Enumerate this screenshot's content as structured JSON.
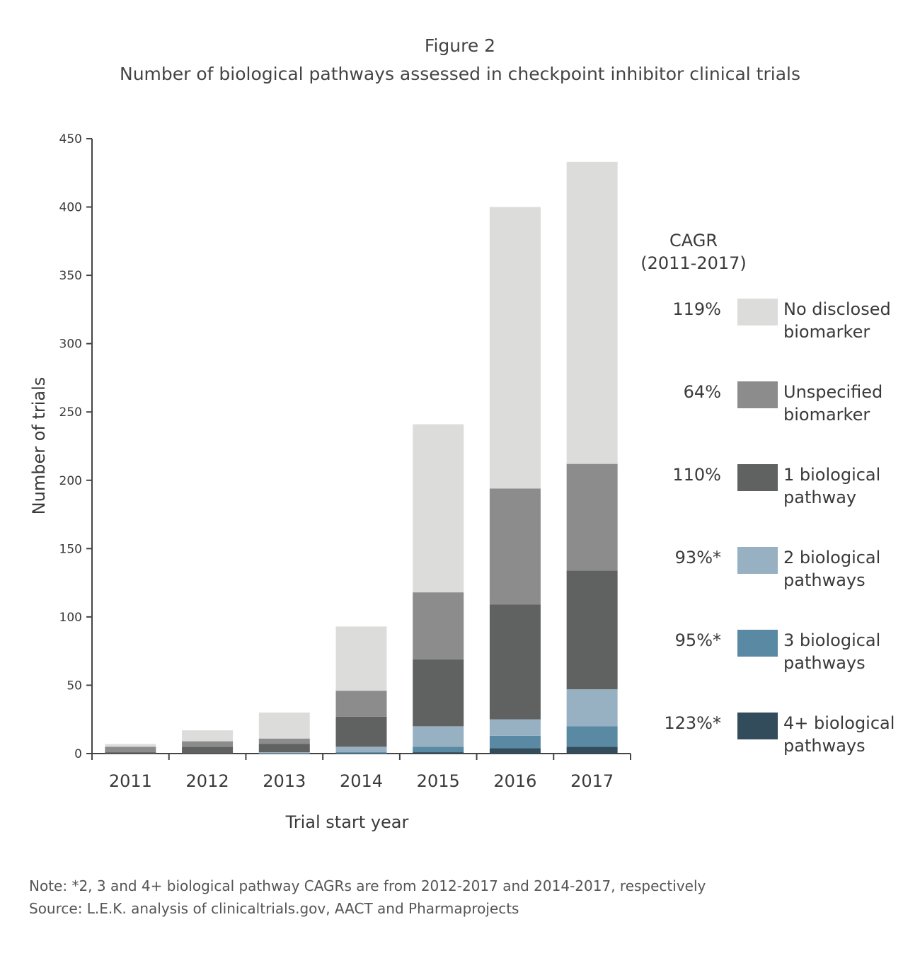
{
  "chart_data": {
    "type": "bar",
    "stacked": true,
    "title": "Figure 2",
    "subtitle": "Number of biological pathways assessed in checkpoint inhibitor clinical trials",
    "xlabel": "Trial start year",
    "ylabel": "Number of trials",
    "ylim": [
      0,
      450
    ],
    "yticks": [
      0,
      50,
      100,
      150,
      200,
      250,
      300,
      350,
      400,
      450
    ],
    "categories": [
      "2011",
      "2012",
      "2013",
      "2014",
      "2015",
      "2016",
      "2017"
    ],
    "grid": false,
    "legend_position": "right",
    "legend_header": [
      "CAGR",
      "(2011-2017)"
    ],
    "series": [
      {
        "name": "4+ biological pathways",
        "cagr": "123%*",
        "color": "#324c5b",
        "values": [
          0,
          0,
          0,
          0,
          1,
          4,
          5
        ]
      },
      {
        "name": "3 biological pathways",
        "cagr": "95%*",
        "color": "#5a89a3",
        "values": [
          0,
          0,
          0,
          1,
          4,
          9,
          15
        ]
      },
      {
        "name": "2 biological pathways",
        "cagr": "93%*",
        "color": "#97b1c3",
        "values": [
          0,
          0,
          1,
          4,
          15,
          12,
          27
        ]
      },
      {
        "name": "1 biological pathway",
        "cagr": "110%",
        "color": "#606261",
        "values": [
          1,
          5,
          6,
          22,
          49,
          84,
          87
        ]
      },
      {
        "name": "Unspecified biomarker",
        "cagr": "64%",
        "color": "#8c8c8c",
        "values": [
          4,
          4,
          4,
          19,
          49,
          85,
          78
        ]
      },
      {
        "name": "No disclosed biomarker",
        "cagr": "119%",
        "color": "#dcdcda",
        "values": [
          2,
          8,
          19,
          47,
          123,
          206,
          221
        ]
      }
    ]
  },
  "footer": {
    "note": "Note: *2, 3 and 4+ biological pathway CAGRs are from 2012-2017 and 2014-2017, respectively",
    "source": "Source: L.E.K. analysis of clinicaltrials.gov, AACT and Pharmaprojects"
  }
}
